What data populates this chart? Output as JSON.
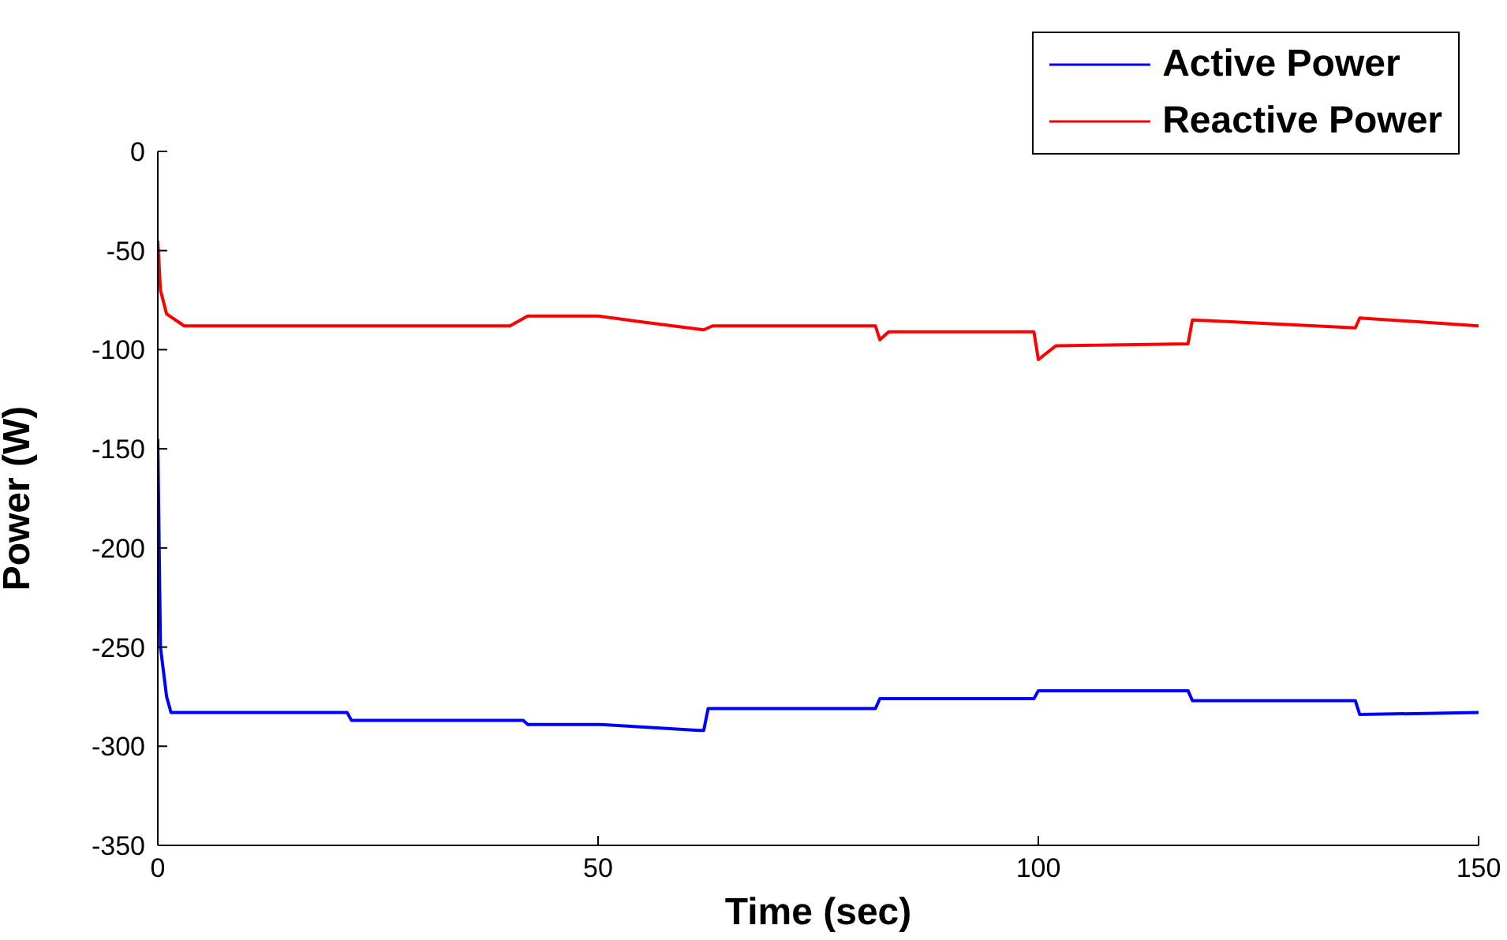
{
  "chart_data": {
    "type": "line",
    "xlabel": "Time (sec)",
    "ylabel": "Power (W)",
    "xlim": [
      0,
      150
    ],
    "xticks": [
      0,
      50,
      100,
      150
    ],
    "ylim": [
      -350,
      0
    ],
    "yticks": [
      -350,
      -300,
      -250,
      -200,
      -150,
      -100,
      -50,
      0
    ],
    "grid": false,
    "legend": "top right",
    "line_style": "solid",
    "marker": "none",
    "series": [
      {
        "name": "Active Power",
        "color": "#0000ff",
        "x": [
          0,
          0.3,
          1,
          1.5,
          21.5,
          22,
          41.5,
          42,
          50,
          61.5,
          62,
          62.5,
          81.5,
          82,
          99.5,
          100,
          117,
          117.5,
          136,
          136.5,
          150
        ],
        "values": [
          -145,
          -250,
          -275,
          -283,
          -283,
          -287,
          -287,
          -289,
          -289,
          -292,
          -292,
          -281,
          -281,
          -276,
          -276,
          -272,
          -272,
          -277,
          -277,
          -284,
          -283
        ]
      },
      {
        "name": "Reactive Power",
        "color": "#ff0000",
        "x": [
          0,
          0.3,
          1,
          3,
          40,
          42,
          50,
          55,
          62,
          63,
          81.5,
          82,
          83,
          99.5,
          100,
          102,
          117,
          117.5,
          136,
          136.5,
          150
        ],
        "values": [
          -45,
          -70,
          -82,
          -88,
          -88,
          -83,
          -83,
          -86,
          -90,
          -88,
          -88,
          -95,
          -91,
          -91,
          -105,
          -98,
          -97,
          -85,
          -89,
          -84,
          -88
        ]
      }
    ]
  }
}
